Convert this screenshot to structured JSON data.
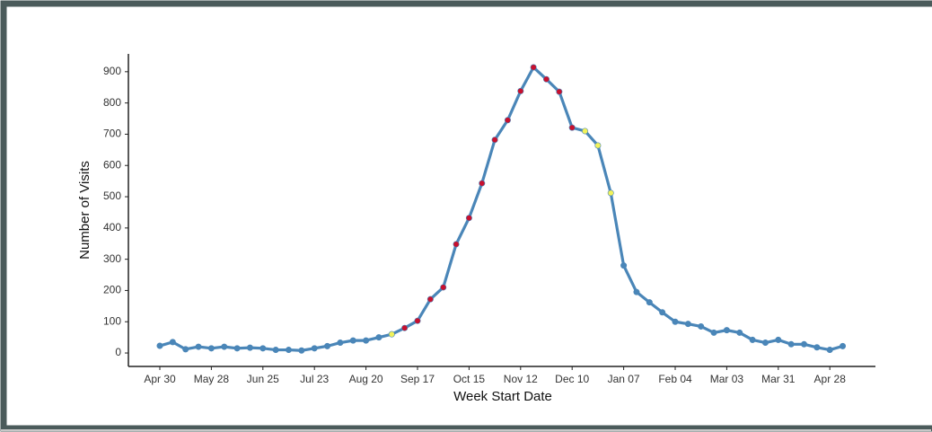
{
  "chart_data": {
    "type": "line",
    "x_label": "Week Start Date",
    "y_label": "Number of Visits",
    "categories": [
      "Apr 30",
      null,
      null,
      null,
      "May 28",
      null,
      null,
      null,
      "Jun 25",
      null,
      null,
      null,
      "Jul 23",
      null,
      null,
      null,
      "Aug 20",
      null,
      null,
      null,
      "Sep 17",
      null,
      null,
      null,
      "Oct 15",
      null,
      null,
      null,
      "Nov 12",
      null,
      null,
      null,
      "Dec 10",
      null,
      null,
      null,
      "Jan 07",
      null,
      null,
      null,
      "Feb 04",
      null,
      null,
      null,
      "Mar 03",
      null,
      null,
      null,
      "Mar 31",
      null,
      null,
      null,
      "Apr 28",
      null
    ],
    "series": [
      {
        "color": "#4a86b8",
        "values": [
          23,
          35,
          12,
          20,
          15,
          20,
          15,
          17,
          15,
          10,
          10,
          8,
          15,
          22,
          33,
          40,
          40,
          50,
          60,
          80,
          103,
          172,
          210,
          348,
          432,
          543,
          682,
          745,
          838,
          914,
          876,
          836,
          721,
          710,
          664,
          512,
          280,
          195,
          162,
          130,
          100,
          93,
          85,
          65,
          73,
          65,
          42,
          33,
          42,
          28,
          28,
          18,
          10,
          22
        ],
        "point_colors": [
          "#4a86b8",
          "#4a86b8",
          "#4a86b8",
          "#4a86b8",
          "#4a86b8",
          "#4a86b8",
          "#4a86b8",
          "#4a86b8",
          "#4a86b8",
          "#4a86b8",
          "#4a86b8",
          "#4a86b8",
          "#4a86b8",
          "#4a86b8",
          "#4a86b8",
          "#4a86b8",
          "#4a86b8",
          "#4a86b8",
          "#f2f25a",
          "#c8102e",
          "#c8102e",
          "#c8102e",
          "#c8102e",
          "#c8102e",
          "#c8102e",
          "#c8102e",
          "#c8102e",
          "#c8102e",
          "#c8102e",
          "#c8102e",
          "#c8102e",
          "#c8102e",
          "#c8102e",
          "#f2f25a",
          "#f2f25a",
          "#f2f25a",
          "#4a86b8",
          "#4a86b8",
          "#4a86b8",
          "#4a86b8",
          "#4a86b8",
          "#4a86b8",
          "#4a86b8",
          "#4a86b8",
          "#4a86b8",
          "#4a86b8",
          "#4a86b8",
          "#4a86b8",
          "#4a86b8",
          "#4a86b8",
          "#4a86b8",
          "#4a86b8",
          "#4a86b8",
          "#4a86b8"
        ]
      }
    ],
    "ylim": [
      -43,
      957
    ],
    "yticks": [
      0,
      100,
      200,
      300,
      400,
      500,
      600,
      700,
      800,
      900
    ],
    "grid": false
  }
}
